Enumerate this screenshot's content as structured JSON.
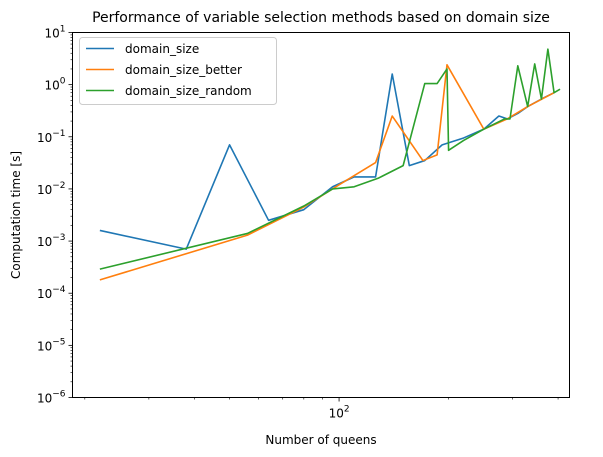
{
  "chart_data": {
    "type": "line",
    "title": "Performance of variable selection methods based on domain size",
    "xlabel": "Number of queens",
    "ylabel": "Computation time [s]",
    "xscale": "log",
    "yscale": "log",
    "xlim": [
      18.5,
      430
    ],
    "ylim": [
      1e-06,
      10
    ],
    "x_tick_labels": [
      {
        "value": 100,
        "base": "10",
        "exp": "2"
      }
    ],
    "y_tick_labels": [
      {
        "value": 1e-06,
        "base": "10",
        "exp": "−6"
      },
      {
        "value": 1e-05,
        "base": "10",
        "exp": "−5"
      },
      {
        "value": 0.0001,
        "base": "10",
        "exp": "−4"
      },
      {
        "value": 0.001,
        "base": "10",
        "exp": "−3"
      },
      {
        "value": 0.01,
        "base": "10",
        "exp": "−2"
      },
      {
        "value": 0.1,
        "base": "10",
        "exp": "−1"
      },
      {
        "value": 1,
        "base": "10",
        "exp": "0"
      },
      {
        "value": 10,
        "base": "10",
        "exp": "1"
      }
    ],
    "grid": false,
    "legend_position": "top-left",
    "series": [
      {
        "name": "domain_size",
        "color": "#1f77b4",
        "points": [
          [
            22,
            0.0016
          ],
          [
            38,
            0.0007
          ],
          [
            50,
            0.07
          ],
          [
            64,
            0.0025
          ],
          [
            80,
            0.004
          ],
          [
            96,
            0.011
          ],
          [
            110,
            0.017
          ],
          [
            126,
            0.017
          ],
          [
            140,
            1.6
          ],
          [
            156,
            0.028
          ],
          [
            172,
            0.035
          ],
          [
            192,
            0.07
          ],
          [
            220,
            0.095
          ],
          [
            250,
            0.14
          ],
          [
            275,
            0.25
          ],
          [
            290,
            0.22
          ],
          [
            310,
            0.28
          ],
          [
            330,
            0.38
          ],
          [
            360,
            0.53
          ],
          [
            390,
            0.7
          ]
        ]
      },
      {
        "name": "domain_size_better",
        "color": "#ff7f0e",
        "points": [
          [
            22,
            0.00018
          ],
          [
            56,
            0.0013
          ],
          [
            80,
            0.0045
          ],
          [
            100,
            0.012
          ],
          [
            126,
            0.032
          ],
          [
            140,
            0.25
          ],
          [
            170,
            0.035
          ],
          [
            186,
            0.045
          ],
          [
            198,
            2.4
          ],
          [
            250,
            0.14
          ],
          [
            290,
            0.22
          ],
          [
            330,
            0.38
          ],
          [
            390,
            0.7
          ]
        ]
      },
      {
        "name": "domain_size_random",
        "color": "#2ca02c",
        "points": [
          [
            22,
            0.00029
          ],
          [
            56,
            0.0014
          ],
          [
            80,
            0.0047
          ],
          [
            96,
            0.01
          ],
          [
            110,
            0.011
          ],
          [
            128,
            0.016
          ],
          [
            150,
            0.028
          ],
          [
            172,
            1.05
          ],
          [
            186,
            1.05
          ],
          [
            198,
            2.0
          ],
          [
            200,
            0.055
          ],
          [
            220,
            0.085
          ],
          [
            250,
            0.14
          ],
          [
            285,
            0.22
          ],
          [
            295,
            0.22
          ],
          [
            310,
            2.3
          ],
          [
            330,
            0.38
          ],
          [
            345,
            2.5
          ],
          [
            360,
            0.53
          ],
          [
            375,
            4.8
          ],
          [
            390,
            0.7
          ],
          [
            405,
            0.82
          ]
        ]
      }
    ]
  }
}
